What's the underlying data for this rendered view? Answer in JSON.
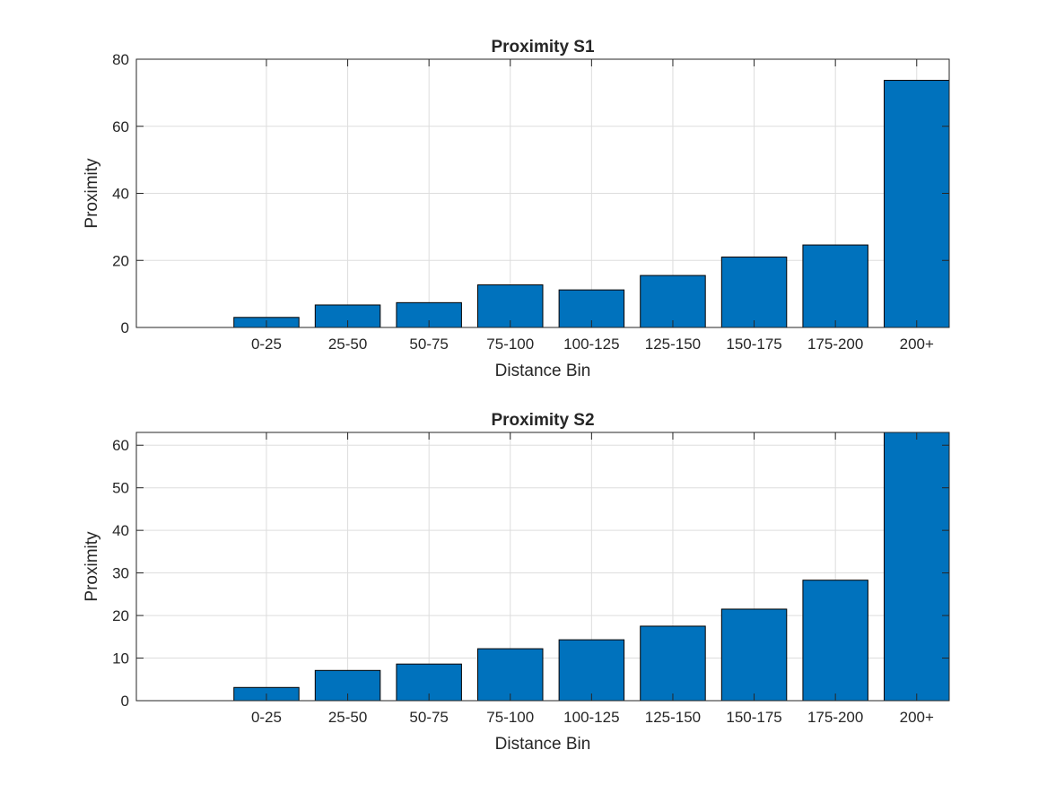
{
  "colors": {
    "bar_fill": "#0072BD",
    "bar_edge": "#000000",
    "axis": "#262626",
    "grid": "#dddddd",
    "background": "#ffffff"
  },
  "chart_data": [
    {
      "type": "bar",
      "title": "Proximity S1",
      "xlabel": "Distance Bin",
      "ylabel": "Proximity",
      "categories": [
        "0-25",
        "25-50",
        "50-75",
        "75-100",
        "100-125",
        "125-150",
        "150-175",
        "175-200",
        "200+"
      ],
      "values": [
        3,
        6.7,
        7.4,
        12.7,
        11.2,
        15.5,
        21,
        24.6,
        73.7
      ],
      "ylim": [
        0,
        80
      ],
      "yticks": [
        0,
        20,
        40,
        60,
        80
      ],
      "xlim": [
        -0.6,
        9.4
      ],
      "grid": true
    },
    {
      "type": "bar",
      "title": "Proximity S2",
      "xlabel": "Distance Bin",
      "ylabel": "Proximity",
      "categories": [
        "0-25",
        "25-50",
        "50-75",
        "75-100",
        "100-125",
        "125-150",
        "150-175",
        "175-200",
        "200+"
      ],
      "values": [
        3.1,
        7.1,
        8.6,
        12.2,
        14.3,
        17.5,
        21.5,
        28.3,
        63
      ],
      "ylim": [
        0,
        63
      ],
      "yticks": [
        0,
        10,
        20,
        30,
        40,
        50,
        60
      ],
      "xlim": [
        -0.6,
        9.4
      ],
      "grid": true
    }
  ]
}
